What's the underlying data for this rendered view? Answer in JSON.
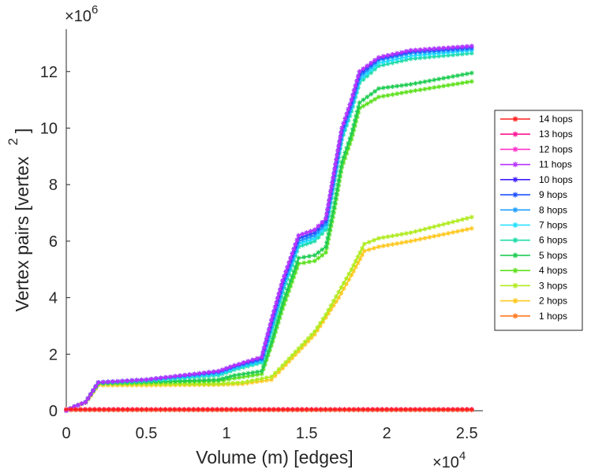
{
  "chart_data": {
    "type": "line",
    "title": "",
    "xlabel": "Volume (m) [edges]",
    "ylabel": "Vertex pairs [vertex",
    "ylabel_superscript": "2",
    "ylabel_close": "]",
    "x_multiplier": {
      "base": "×10",
      "exp": "4"
    },
    "y_multiplier": {
      "base": "×10",
      "exp": "6"
    },
    "xlim": [
      0,
      2.6
    ],
    "ylim": [
      0,
      13.5
    ],
    "x_ticks": [
      0,
      0.5,
      1,
      1.5,
      2,
      2.5
    ],
    "x_tick_labels": [
      "0",
      "0.5",
      "1",
      "1.5",
      "2",
      "2.5"
    ],
    "y_ticks": [
      0,
      2,
      4,
      6,
      8,
      10,
      12
    ],
    "y_tick_labels": [
      "0",
      "2",
      "4",
      "6",
      "8",
      "10",
      "12"
    ],
    "grid": false,
    "legend_position": "right",
    "series": [
      {
        "name": "14 hops",
        "color": "#ff1f1f",
        "points": [
          [
            0,
            0.05
          ],
          [
            2.53,
            0.05
          ]
        ]
      },
      {
        "name": "13 hops",
        "color": "#ff1493",
        "points": [
          [
            0,
            0.05
          ],
          [
            2.53,
            0.05
          ]
        ]
      },
      {
        "name": "12 hops",
        "color": "#ff33cc",
        "points": [
          [
            0,
            0.05
          ],
          [
            2.53,
            0.05
          ]
        ]
      },
      {
        "name": "11 hops",
        "color": "#b833ff",
        "points": [
          [
            0,
            0
          ],
          [
            0.05,
            0.15
          ],
          [
            0.12,
            0.3
          ],
          [
            0.2,
            1.0
          ],
          [
            0.5,
            1.1
          ],
          [
            0.95,
            1.4
          ],
          [
            1.05,
            1.6
          ],
          [
            1.22,
            1.9
          ],
          [
            1.28,
            3.2
          ],
          [
            1.35,
            4.6
          ],
          [
            1.45,
            6.2
          ],
          [
            1.55,
            6.4
          ],
          [
            1.62,
            6.8
          ],
          [
            1.67,
            8.4
          ],
          [
            1.72,
            10.0
          ],
          [
            1.78,
            11.0
          ],
          [
            1.83,
            12.0
          ],
          [
            1.95,
            12.5
          ],
          [
            2.15,
            12.75
          ],
          [
            2.53,
            12.9
          ]
        ]
      },
      {
        "name": "10 hops",
        "color": "#3d1fff",
        "points": [
          [
            0,
            0
          ],
          [
            0.05,
            0.15
          ],
          [
            0.12,
            0.3
          ],
          [
            0.2,
            1.0
          ],
          [
            0.5,
            1.1
          ],
          [
            0.95,
            1.4
          ],
          [
            1.05,
            1.6
          ],
          [
            1.22,
            1.9
          ],
          [
            1.28,
            3.2
          ],
          [
            1.35,
            4.6
          ],
          [
            1.45,
            6.2
          ],
          [
            1.55,
            6.4
          ],
          [
            1.62,
            6.8
          ],
          [
            1.67,
            8.4
          ],
          [
            1.72,
            10.0
          ],
          [
            1.78,
            11.0
          ],
          [
            1.83,
            12.0
          ],
          [
            1.95,
            12.5
          ],
          [
            2.15,
            12.75
          ],
          [
            2.53,
            12.9
          ]
        ]
      },
      {
        "name": "9 hops",
        "color": "#1f52ff",
        "points": [
          [
            0,
            0
          ],
          [
            0.05,
            0.15
          ],
          [
            0.12,
            0.3
          ],
          [
            0.2,
            1.0
          ],
          [
            0.5,
            1.1
          ],
          [
            0.95,
            1.38
          ],
          [
            1.05,
            1.58
          ],
          [
            1.22,
            1.85
          ],
          [
            1.28,
            3.1
          ],
          [
            1.35,
            4.5
          ],
          [
            1.45,
            6.1
          ],
          [
            1.55,
            6.3
          ],
          [
            1.62,
            6.7
          ],
          [
            1.67,
            8.3
          ],
          [
            1.72,
            9.9
          ],
          [
            1.78,
            10.9
          ],
          [
            1.83,
            11.9
          ],
          [
            1.95,
            12.45
          ],
          [
            2.15,
            12.7
          ],
          [
            2.53,
            12.85
          ]
        ]
      },
      {
        "name": "8 hops",
        "color": "#1f9eff",
        "points": [
          [
            0,
            0
          ],
          [
            0.05,
            0.15
          ],
          [
            0.12,
            0.3
          ],
          [
            0.2,
            1.0
          ],
          [
            0.5,
            1.1
          ],
          [
            0.95,
            1.35
          ],
          [
            1.05,
            1.55
          ],
          [
            1.22,
            1.8
          ],
          [
            1.28,
            3.0
          ],
          [
            1.35,
            4.4
          ],
          [
            1.45,
            6.0
          ],
          [
            1.55,
            6.2
          ],
          [
            1.62,
            6.6
          ],
          [
            1.67,
            8.2
          ],
          [
            1.72,
            9.8
          ],
          [
            1.78,
            10.8
          ],
          [
            1.83,
            11.8
          ],
          [
            1.95,
            12.4
          ],
          [
            2.15,
            12.65
          ],
          [
            2.53,
            12.8
          ]
        ]
      },
      {
        "name": "7 hops",
        "color": "#1fe0ff",
        "points": [
          [
            0,
            0
          ],
          [
            0.05,
            0.15
          ],
          [
            0.12,
            0.3
          ],
          [
            0.2,
            1.0
          ],
          [
            0.5,
            1.08
          ],
          [
            0.95,
            1.3
          ],
          [
            1.05,
            1.5
          ],
          [
            1.22,
            1.75
          ],
          [
            1.28,
            2.9
          ],
          [
            1.35,
            4.3
          ],
          [
            1.45,
            5.9
          ],
          [
            1.55,
            6.1
          ],
          [
            1.62,
            6.5
          ],
          [
            1.67,
            8.1
          ],
          [
            1.72,
            9.7
          ],
          [
            1.78,
            10.7
          ],
          [
            1.83,
            11.7
          ],
          [
            1.95,
            12.3
          ],
          [
            2.15,
            12.55
          ],
          [
            2.53,
            12.75
          ]
        ]
      },
      {
        "name": "6 hops",
        "color": "#1fdba8",
        "points": [
          [
            0,
            0
          ],
          [
            0.05,
            0.15
          ],
          [
            0.12,
            0.3
          ],
          [
            0.2,
            0.98
          ],
          [
            0.5,
            1.05
          ],
          [
            0.95,
            1.25
          ],
          [
            1.05,
            1.45
          ],
          [
            1.22,
            1.7
          ],
          [
            1.28,
            2.8
          ],
          [
            1.35,
            4.2
          ],
          [
            1.45,
            5.8
          ],
          [
            1.55,
            6.0
          ],
          [
            1.62,
            6.4
          ],
          [
            1.67,
            8.0
          ],
          [
            1.72,
            9.6
          ],
          [
            1.78,
            10.6
          ],
          [
            1.83,
            11.6
          ],
          [
            1.95,
            12.2
          ],
          [
            2.15,
            12.45
          ],
          [
            2.53,
            12.65
          ]
        ]
      },
      {
        "name": "5 hops",
        "color": "#1fcc52",
        "points": [
          [
            0,
            0
          ],
          [
            0.05,
            0.15
          ],
          [
            0.12,
            0.3
          ],
          [
            0.2,
            0.98
          ],
          [
            0.5,
            1.02
          ],
          [
            0.95,
            1.1
          ],
          [
            1.05,
            1.25
          ],
          [
            1.22,
            1.4
          ],
          [
            1.28,
            2.4
          ],
          [
            1.35,
            3.8
          ],
          [
            1.45,
            5.4
          ],
          [
            1.55,
            5.5
          ],
          [
            1.62,
            5.8
          ],
          [
            1.67,
            7.2
          ],
          [
            1.72,
            8.8
          ],
          [
            1.78,
            9.8
          ],
          [
            1.83,
            10.9
          ],
          [
            1.95,
            11.4
          ],
          [
            2.15,
            11.55
          ],
          [
            2.53,
            11.95
          ]
        ]
      },
      {
        "name": "4 hops",
        "color": "#5ee01f",
        "points": [
          [
            0,
            0
          ],
          [
            0.05,
            0.15
          ],
          [
            0.12,
            0.3
          ],
          [
            0.2,
            0.96
          ],
          [
            0.5,
            1.0
          ],
          [
            0.95,
            1.05
          ],
          [
            1.05,
            1.15
          ],
          [
            1.22,
            1.3
          ],
          [
            1.28,
            2.3
          ],
          [
            1.35,
            3.6
          ],
          [
            1.45,
            5.2
          ],
          [
            1.55,
            5.3
          ],
          [
            1.62,
            5.6
          ],
          [
            1.67,
            7.0
          ],
          [
            1.72,
            8.6
          ],
          [
            1.78,
            9.6
          ],
          [
            1.83,
            10.7
          ],
          [
            1.95,
            11.1
          ],
          [
            2.15,
            11.3
          ],
          [
            2.53,
            11.65
          ]
        ]
      },
      {
        "name": "3 hops",
        "color": "#b0eb1f",
        "points": [
          [
            0,
            0
          ],
          [
            0.05,
            0.15
          ],
          [
            0.12,
            0.3
          ],
          [
            0.2,
            0.95
          ],
          [
            0.5,
            0.95
          ],
          [
            0.95,
            0.95
          ],
          [
            1.1,
            1.0
          ],
          [
            1.28,
            1.2
          ],
          [
            1.35,
            1.6
          ],
          [
            1.45,
            2.2
          ],
          [
            1.55,
            2.8
          ],
          [
            1.62,
            3.4
          ],
          [
            1.7,
            4.2
          ],
          [
            1.78,
            5.0
          ],
          [
            1.86,
            5.9
          ],
          [
            1.95,
            6.1
          ],
          [
            2.15,
            6.3
          ],
          [
            2.53,
            6.85
          ]
        ]
      },
      {
        "name": "2 hops",
        "color": "#ffc81f",
        "points": [
          [
            0,
            0
          ],
          [
            0.05,
            0.15
          ],
          [
            0.12,
            0.28
          ],
          [
            0.2,
            0.9
          ],
          [
            0.5,
            0.9
          ],
          [
            0.95,
            0.92
          ],
          [
            1.1,
            0.95
          ],
          [
            1.28,
            1.1
          ],
          [
            1.35,
            1.5
          ],
          [
            1.45,
            2.1
          ],
          [
            1.55,
            2.7
          ],
          [
            1.62,
            3.3
          ],
          [
            1.7,
            4.0
          ],
          [
            1.78,
            4.8
          ],
          [
            1.86,
            5.65
          ],
          [
            1.95,
            5.8
          ],
          [
            2.15,
            6.0
          ],
          [
            2.53,
            6.45
          ]
        ]
      },
      {
        "name": "1 hops",
        "color": "#ff7a1f",
        "points": [
          [
            0,
            0.02
          ],
          [
            2.53,
            0.02
          ]
        ]
      }
    ]
  }
}
